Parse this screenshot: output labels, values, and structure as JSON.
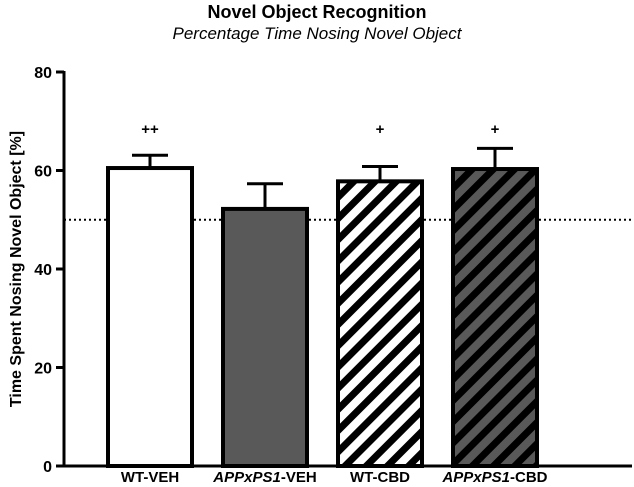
{
  "chart_data": {
    "type": "bar",
    "title": "Novel Object Recognition",
    "subtitle": "Percentage Time Nosing Novel Object",
    "ylabel": "Time Spent Nosing Novel Object [%]",
    "xlabel": "",
    "ylim": [
      0,
      80
    ],
    "yticks": [
      0,
      20,
      40,
      60,
      80
    ],
    "categories": [
      {
        "parts": [
          {
            "text": "WT-VEH",
            "italic": false
          }
        ]
      },
      {
        "parts": [
          {
            "text": "APPxPS1",
            "italic": true
          },
          {
            "text": "-VEH",
            "italic": false
          }
        ]
      },
      {
        "parts": [
          {
            "text": "WT-CBD",
            "italic": false
          }
        ]
      },
      {
        "parts": [
          {
            "text": "APPxPS1",
            "italic": true
          },
          {
            "text": "-CBD",
            "italic": false
          }
        ]
      }
    ],
    "values": [
      60.5,
      52.2,
      57.8,
      60.3
    ],
    "error_upper": [
      2.6,
      5.1,
      3.0,
      4.2
    ],
    "annotations": [
      "++",
      "",
      "+",
      "+"
    ],
    "bar_styles": [
      "open",
      "filled",
      "hatched-open",
      "hatched-filled"
    ],
    "reference_line": 50,
    "grid": false,
    "colors": {
      "fill_dark": "#595959",
      "outline": "#000000",
      "fill_light": "#ffffff"
    }
  }
}
